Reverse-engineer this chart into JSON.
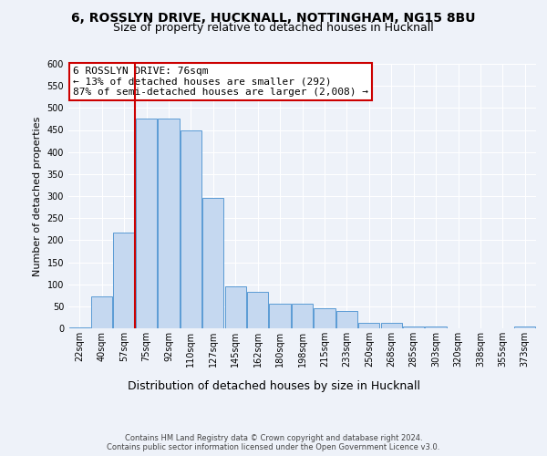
{
  "title1": "6, ROSSLYN DRIVE, HUCKNALL, NOTTINGHAM, NG15 8BU",
  "title2": "Size of property relative to detached houses in Hucknall",
  "xlabel": "Distribution of detached houses by size in Hucknall",
  "ylabel": "Number of detached properties",
  "categories": [
    "22sqm",
    "40sqm",
    "57sqm",
    "75sqm",
    "92sqm",
    "110sqm",
    "127sqm",
    "145sqm",
    "162sqm",
    "180sqm",
    "198sqm",
    "215sqm",
    "233sqm",
    "250sqm",
    "268sqm",
    "285sqm",
    "303sqm",
    "320sqm",
    "338sqm",
    "355sqm",
    "373sqm"
  ],
  "values": [
    3,
    72,
    218,
    475,
    475,
    450,
    295,
    95,
    82,
    55,
    55,
    46,
    40,
    13,
    13,
    4,
    4,
    0,
    0,
    0,
    5
  ],
  "bar_color": "#c5d8f0",
  "bar_edge_color": "#5b9bd5",
  "vline_color": "#cc0000",
  "vline_x_index": 3,
  "annotation_text": "6 ROSSLYN DRIVE: 76sqm\n← 13% of detached houses are smaller (292)\n87% of semi-detached houses are larger (2,008) →",
  "annotation_box_color": "#ffffff",
  "annotation_box_edge": "#cc0000",
  "ylim": [
    0,
    600
  ],
  "yticks": [
    0,
    50,
    100,
    150,
    200,
    250,
    300,
    350,
    400,
    450,
    500,
    550,
    600
  ],
  "footer": "Contains HM Land Registry data © Crown copyright and database right 2024.\nContains public sector information licensed under the Open Government Licence v3.0.",
  "bg_color": "#eef2f9",
  "plot_bg_color": "#eef2f9",
  "grid_color": "#ffffff",
  "title1_fontsize": 10,
  "title2_fontsize": 9,
  "ylabel_fontsize": 8,
  "xlabel_fontsize": 9,
  "tick_fontsize": 7,
  "annotation_fontsize": 8,
  "footer_fontsize": 6
}
